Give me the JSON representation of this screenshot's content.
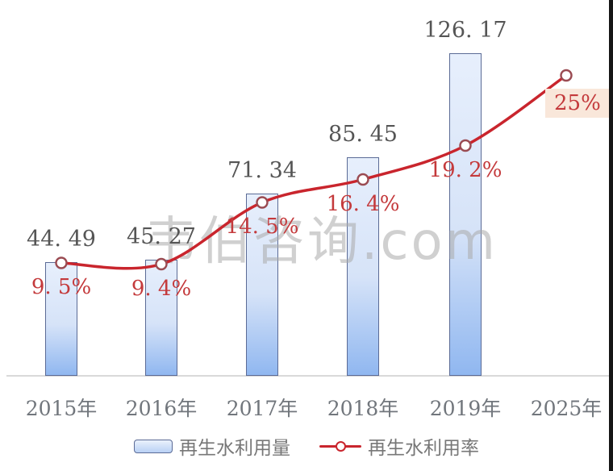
{
  "watermark": "韦伯咨询.com",
  "legend": {
    "bar_label": "再生水利用量",
    "line_label": "再生水利用率"
  },
  "colors": {
    "bar_fill_top": "#e7effc",
    "bar_fill_mid": "#d6e3f8",
    "bar_fill_bottom": "#90b7f0",
    "bar_border": "#5b6b96",
    "line": "#c9252d",
    "marker_fill": "#ffffff",
    "marker_stroke": "#9a4b52",
    "value_label_text": "#555555",
    "pct_label_text": "#c43a3c",
    "x_label_text": "#71767c",
    "legend_text": "#777777",
    "axis_line": "#d9d9d9",
    "highlight_bg": "#f9e7da",
    "watermark_text": "#aaaaaa",
    "right_edge_strip": "#161616"
  },
  "chart_data": {
    "type": "bar+line combo",
    "categories": [
      "2015年",
      "2016年",
      "2017年",
      "2018年",
      "2019年",
      "2025年"
    ],
    "series": [
      {
        "name": "再生水利用量",
        "type": "bar",
        "values": [
          44.49,
          45.27,
          71.34,
          85.45,
          126.17,
          null
        ],
        "labels": [
          "44. 49",
          "45. 27",
          "71. 34",
          "85. 45",
          "126. 17",
          ""
        ]
      },
      {
        "name": "再生水利用率",
        "type": "line",
        "values": [
          9.5,
          9.4,
          14.5,
          16.4,
          19.2,
          25
        ],
        "labels": [
          "9. 5%",
          "9. 4%",
          "14. 5%",
          "16. 4%",
          "19. 2%",
          "25%"
        ],
        "highlighted_label_index": 5
      }
    ],
    "axes": {
      "y_axis_visible": false,
      "gridlines": false,
      "x_baseline_visible": true
    },
    "legend_position": "bottom-center",
    "notes": "2025年 has a rate point (25%, highlighted with peach background) but no bar."
  }
}
